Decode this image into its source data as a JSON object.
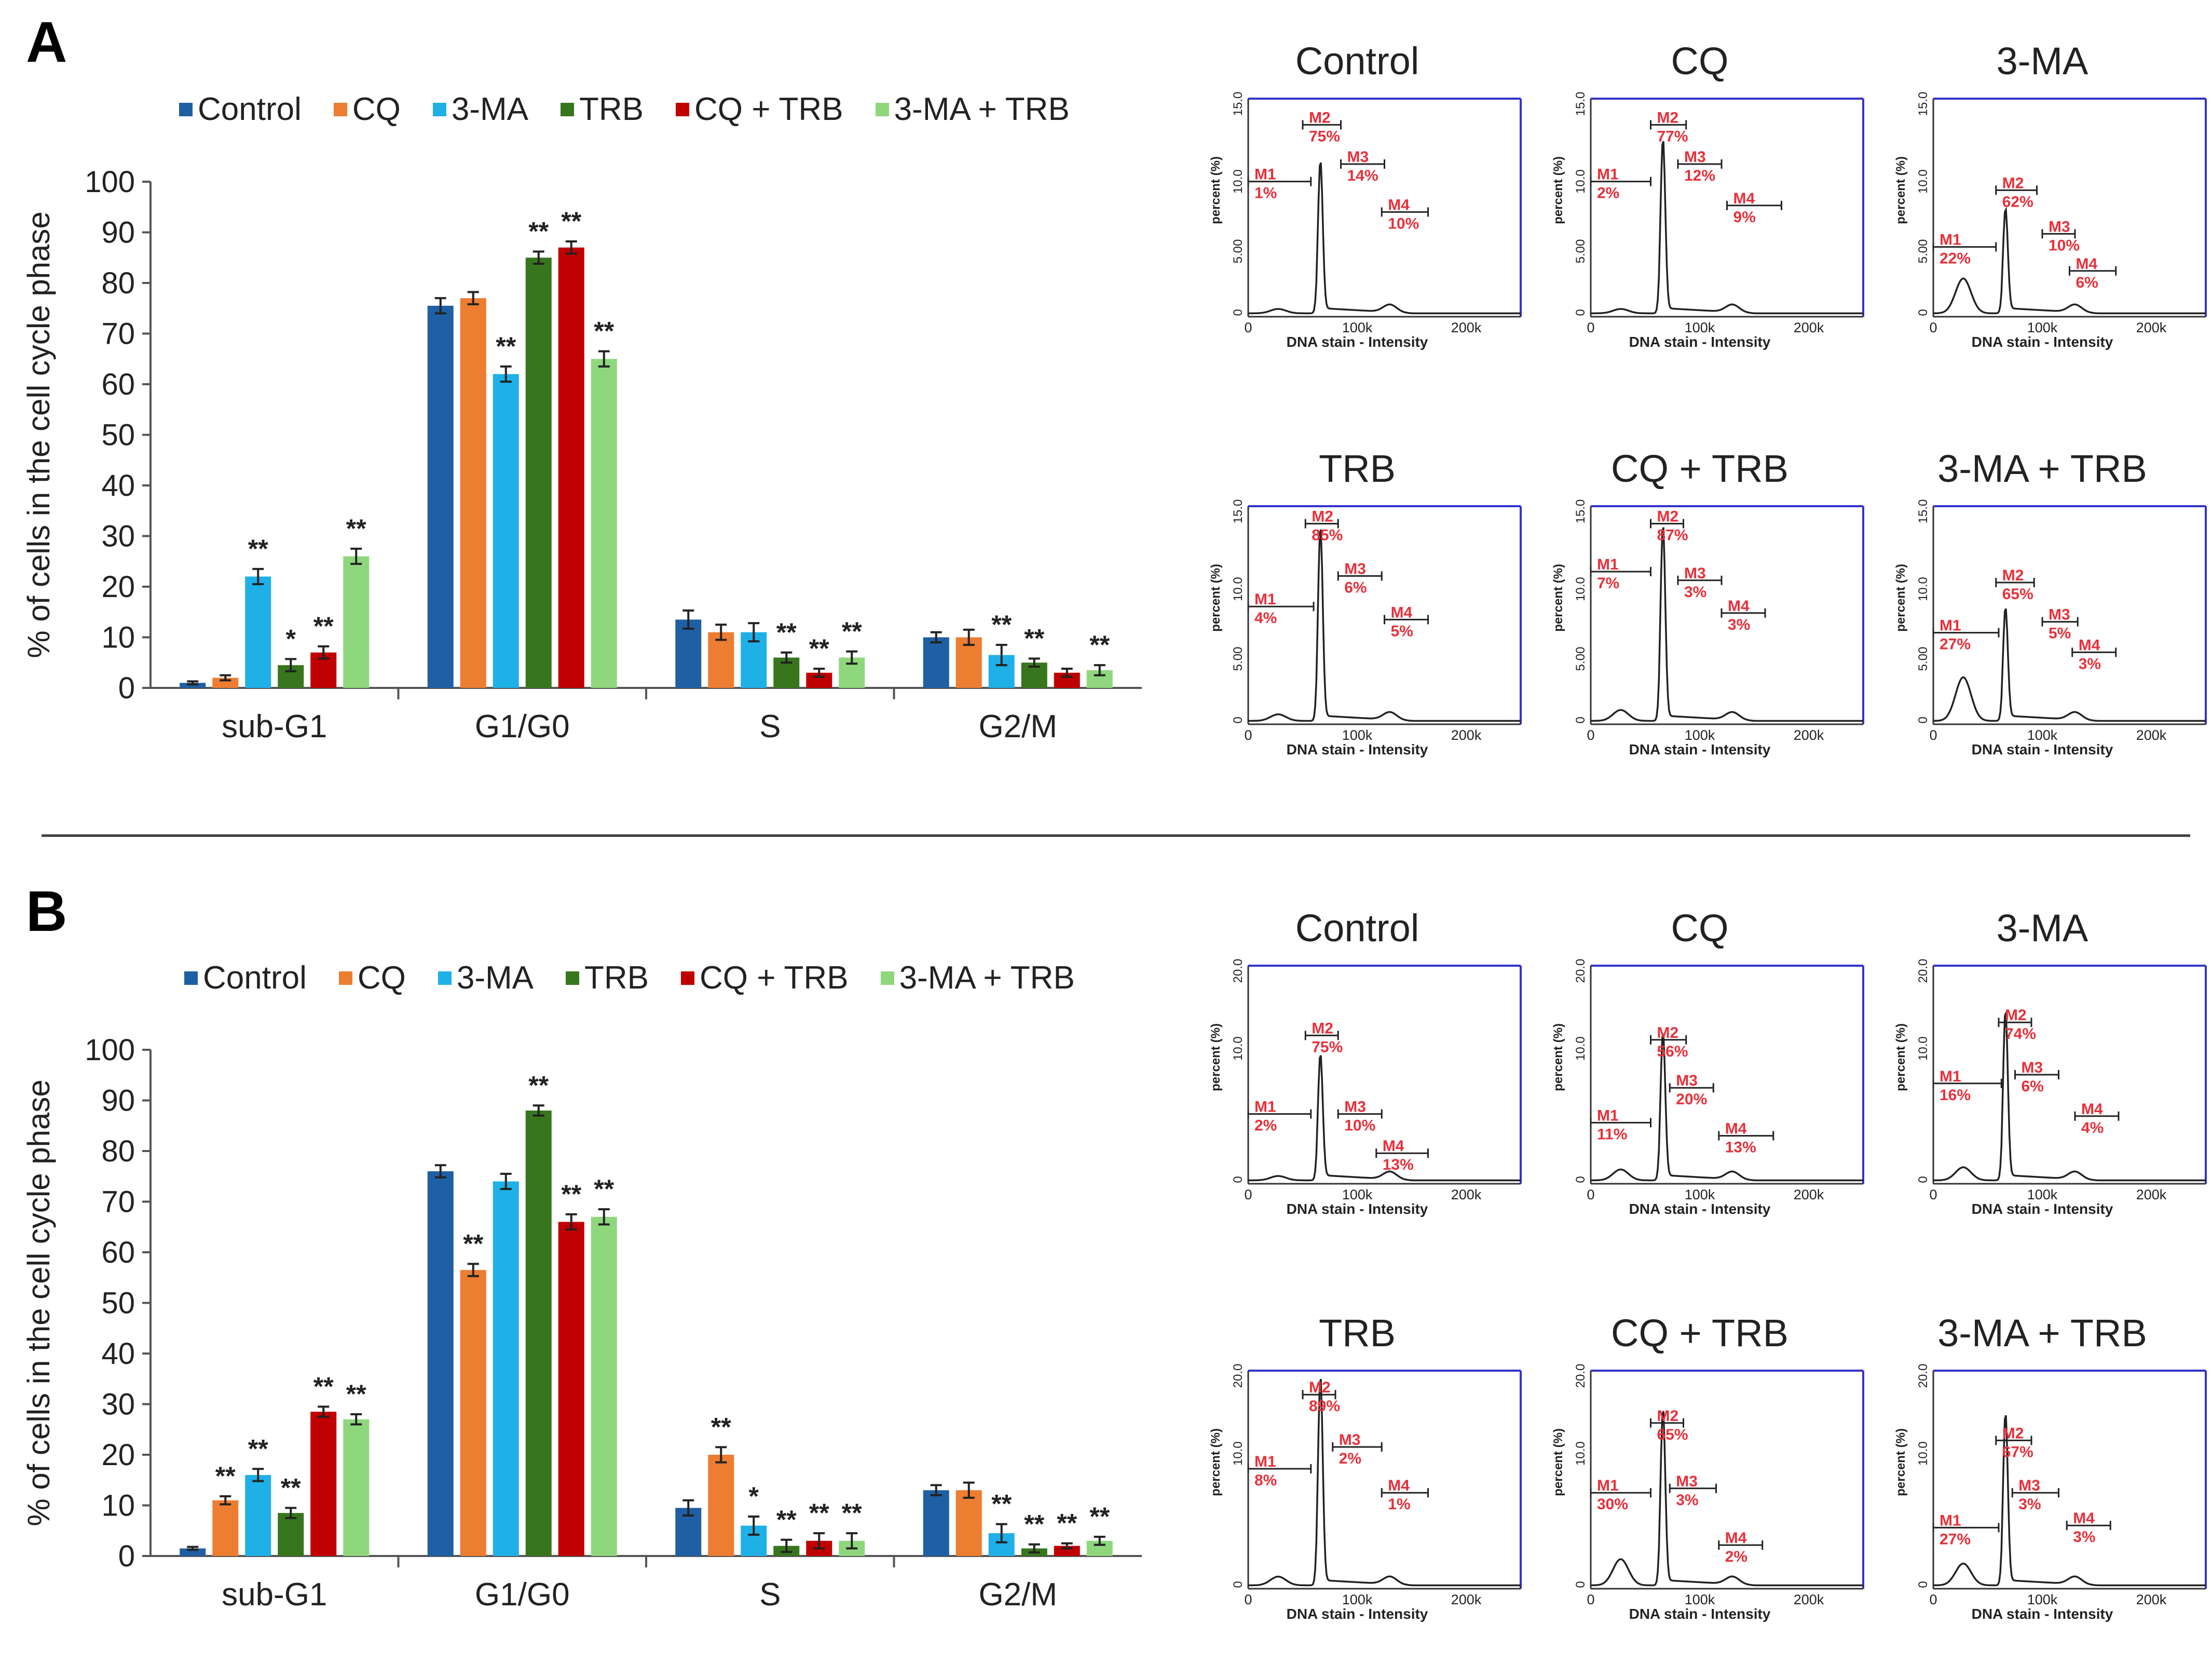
{
  "panels": [
    {
      "letter": "A",
      "bar_chart": {
        "type": "bar",
        "ylabel": "% of cells in the cell cycle phase",
        "ylim": [
          0,
          100
        ],
        "yticks": [
          0,
          10,
          20,
          30,
          40,
          50,
          60,
          70,
          80,
          90,
          100
        ],
        "categories": [
          "sub-G1",
          "G1/G0",
          "S",
          "G2/M"
        ],
        "series": [
          {
            "name": "Control",
            "color": "#1f5fa4",
            "values": [
              1,
              75.5,
              13.5,
              10
            ],
            "errors": [
              0.3,
              1.5,
              1.8,
              1
            ],
            "sig": [
              "",
              "",
              "",
              ""
            ]
          },
          {
            "name": "CQ",
            "color": "#ed7d31",
            "values": [
              2,
              77,
              11,
              10
            ],
            "errors": [
              0.5,
              1.2,
              1.5,
              1.5
            ],
            "sig": [
              "",
              "",
              "",
              ""
            ]
          },
          {
            "name": "3-MA",
            "color": "#1fb0e8",
            "values": [
              22,
              62,
              11,
              6.5
            ],
            "errors": [
              1.5,
              1.5,
              1.8,
              2
            ],
            "sig": [
              "**",
              "**",
              "",
              "**"
            ]
          },
          {
            "name": "TRB",
            "color": "#38761d",
            "values": [
              4.5,
              85,
              6,
              5
            ],
            "errors": [
              1.2,
              1.2,
              1,
              0.8
            ],
            "sig": [
              "*",
              "**",
              "**",
              "**"
            ]
          },
          {
            "name": "CQ + TRB",
            "color": "#c00000",
            "values": [
              7,
              87,
              3,
              3
            ],
            "errors": [
              1.2,
              1.2,
              0.8,
              0.8
            ],
            "sig": [
              "**",
              "**",
              "**",
              ""
            ]
          },
          {
            "name": "3-MA + TRB",
            "color": "#8fd77d",
            "values": [
              26,
              65,
              6,
              3.5
            ],
            "errors": [
              1.5,
              1.5,
              1.2,
              1
            ],
            "sig": [
              "**",
              "**",
              "**",
              "**"
            ]
          }
        ]
      },
      "histograms": [
        {
          "title": "Control",
          "ymax_label": "15.0",
          "ymid_label": "10.0",
          "ylow_label": "5.00",
          "markers": [
            {
              "id": "M1",
              "pct": "1%"
            },
            {
              "id": "M2",
              "pct": "75%"
            },
            {
              "id": "M3",
              "pct": "14%"
            },
            {
              "id": "M4",
              "pct": "10%"
            }
          ]
        },
        {
          "title": "CQ",
          "ymax_label": "15.0",
          "ymid_label": "10.0",
          "ylow_label": "5.00",
          "markers": [
            {
              "id": "M1",
              "pct": "2%"
            },
            {
              "id": "M2",
              "pct": "77%"
            },
            {
              "id": "M3",
              "pct": "12%"
            },
            {
              "id": "M4",
              "pct": "9%"
            }
          ]
        },
        {
          "title": "3-MA",
          "ymax_label": "15.0",
          "ymid_label": "10.0",
          "ylow_label": "5.00",
          "markers": [
            {
              "id": "M1",
              "pct": "22%"
            },
            {
              "id": "M2",
              "pct": "62%"
            },
            {
              "id": "M3",
              "pct": "10%"
            },
            {
              "id": "M4",
              "pct": "6%"
            }
          ]
        },
        {
          "title": "TRB",
          "ymax_label": "15.0",
          "ymid_label": "10.0",
          "ylow_label": "5.00",
          "markers": [
            {
              "id": "M1",
              "pct": "4%"
            },
            {
              "id": "M2",
              "pct": "85%"
            },
            {
              "id": "M3",
              "pct": "6%"
            },
            {
              "id": "M4",
              "pct": "5%"
            }
          ]
        },
        {
          "title": "CQ + TRB",
          "ymax_label": "15.0",
          "ymid_label": "10.0",
          "ylow_label": "5.00",
          "markers": [
            {
              "id": "M1",
              "pct": "7%"
            },
            {
              "id": "M2",
              "pct": "87%"
            },
            {
              "id": "M3",
              "pct": "3%"
            },
            {
              "id": "M4",
              "pct": "3%"
            }
          ]
        },
        {
          "title": "3-MA + TRB",
          "ymax_label": "15.0",
          "ymid_label": "10.0",
          "ylow_label": "5.00",
          "markers": [
            {
              "id": "M1",
              "pct": "27%"
            },
            {
              "id": "M2",
              "pct": "65%"
            },
            {
              "id": "M3",
              "pct": "5%"
            },
            {
              "id": "M4",
              "pct": "3%"
            }
          ]
        }
      ]
    },
    {
      "letter": "B",
      "bar_chart": {
        "type": "bar",
        "ylabel": "% of cells in the cell cycle phase",
        "ylim": [
          0,
          100
        ],
        "yticks": [
          0,
          10,
          20,
          30,
          40,
          50,
          60,
          70,
          80,
          90,
          100
        ],
        "categories": [
          "sub-G1",
          "G1/G0",
          "S",
          "G2/M"
        ],
        "series": [
          {
            "name": "Control",
            "color": "#1f5fa4",
            "values": [
              1.5,
              76,
              9.5,
              13
            ],
            "errors": [
              0.3,
              1.2,
              1.5,
              1
            ],
            "sig": [
              "",
              "",
              "",
              ""
            ]
          },
          {
            "name": "CQ",
            "color": "#ed7d31",
            "values": [
              11,
              56.5,
              20,
              13
            ],
            "errors": [
              0.8,
              1.2,
              1.5,
              1.5
            ],
            "sig": [
              "**",
              "**",
              "**",
              ""
            ]
          },
          {
            "name": "3-MA",
            "color": "#1fb0e8",
            "values": [
              16,
              74,
              6,
              4.5
            ],
            "errors": [
              1.2,
              1.5,
              1.8,
              1.8
            ],
            "sig": [
              "**",
              "",
              "*",
              "**"
            ]
          },
          {
            "name": "TRB",
            "color": "#38761d",
            "values": [
              8.5,
              88,
              2,
              1.5
            ],
            "errors": [
              1,
              1,
              1.2,
              0.8
            ],
            "sig": [
              "**",
              "**",
              "**",
              "**"
            ]
          },
          {
            "name": "CQ + TRB",
            "color": "#c00000",
            "values": [
              28.5,
              66,
              3,
              2
            ],
            "errors": [
              1,
              1.5,
              1.5,
              0.5
            ],
            "sig": [
              "**",
              "**",
              "**",
              "**"
            ]
          },
          {
            "name": "3-MA + TRB",
            "color": "#8fd77d",
            "values": [
              27,
              67,
              3,
              3
            ],
            "errors": [
              1,
              1.5,
              1.5,
              0.8
            ],
            "sig": [
              "**",
              "**",
              "**",
              "**"
            ]
          }
        ]
      },
      "histograms": [
        {
          "title": "Control",
          "ymax_label": "20.0",
          "ymid_label": "10.0",
          "ylow_label": "",
          "markers": [
            {
              "id": "M1",
              "pct": "2%"
            },
            {
              "id": "M2",
              "pct": "75%"
            },
            {
              "id": "M3",
              "pct": "10%"
            },
            {
              "id": "M4",
              "pct": "13%"
            }
          ]
        },
        {
          "title": "CQ",
          "ymax_label": "20.0",
          "ymid_label": "10.0",
          "ylow_label": "",
          "markers": [
            {
              "id": "M1",
              "pct": "11%"
            },
            {
              "id": "M2",
              "pct": "56%"
            },
            {
              "id": "M3",
              "pct": "20%"
            },
            {
              "id": "M4",
              "pct": "13%"
            }
          ]
        },
        {
          "title": "3-MA",
          "ymax_label": "20.0",
          "ymid_label": "10.0",
          "ylow_label": "",
          "markers": [
            {
              "id": "M1",
              "pct": "16%"
            },
            {
              "id": "M2",
              "pct": "74%"
            },
            {
              "id": "M3",
              "pct": "6%"
            },
            {
              "id": "M4",
              "pct": "4%"
            }
          ]
        },
        {
          "title": "TRB",
          "ymax_label": "20.0",
          "ymid_label": "10.0",
          "ylow_label": "",
          "markers": [
            {
              "id": "M1",
              "pct": "8%"
            },
            {
              "id": "M2",
              "pct": "89%"
            },
            {
              "id": "M3",
              "pct": "2%"
            },
            {
              "id": "M4",
              "pct": "1%"
            }
          ]
        },
        {
          "title": "CQ + TRB",
          "ymax_label": "20.0",
          "ymid_label": "10.0",
          "ylow_label": "",
          "markers": [
            {
              "id": "M1",
              "pct": "30%"
            },
            {
              "id": "M2",
              "pct": "65%"
            },
            {
              "id": "M3",
              "pct": "3%"
            },
            {
              "id": "M4",
              "pct": "2%"
            }
          ]
        },
        {
          "title": "3-MA + TRB",
          "ymax_label": "20.0",
          "ymid_label": "10.0",
          "ylow_label": "",
          "markers": [
            {
              "id": "M1",
              "pct": "27%"
            },
            {
              "id": "M2",
              "pct": "67%"
            },
            {
              "id": "M3",
              "pct": "3%"
            },
            {
              "id": "M4",
              "pct": "3%"
            }
          ]
        }
      ]
    }
  ],
  "histogram_common": {
    "ylabel": "percent (%)",
    "xlabel": "DNA stain - Intensity",
    "xticks": [
      "0",
      "100k",
      "200k"
    ]
  },
  "colors": {
    "frame": "#3333cc",
    "marker_text": "#e8303a",
    "trace": "#222222"
  }
}
